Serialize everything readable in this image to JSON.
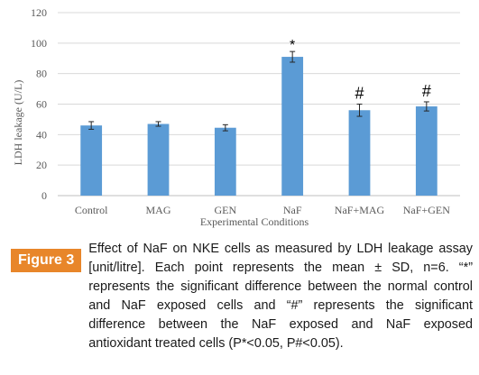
{
  "chart_data": {
    "type": "bar",
    "categories": [
      "Control",
      "MAG",
      "GEN",
      "NaF",
      "NaF+MAG",
      "NaF+GEN"
    ],
    "values": [
      46,
      47,
      44.5,
      91,
      56,
      58.5
    ],
    "errors": [
      2.5,
      1.5,
      2,
      3.5,
      4,
      3
    ],
    "annotations": [
      "",
      "",
      "",
      "*",
      "#",
      "#"
    ],
    "xlabel": "Experimental Conditions",
    "ylabel": "LDH leakage (U/L)",
    "ylim": [
      0,
      120
    ],
    "yticks": [
      0,
      20,
      40,
      60,
      80,
      100,
      120
    ],
    "grid": true,
    "bar_color": "#5b9bd5"
  },
  "caption": {
    "label": "Figure 3",
    "text": "Effect of NaF on NKE cells as measured by LDH leakage assay [unit/litre]. Each point represents the mean ± SD, n=6. “*” represents the significant difference between the normal control and NaF exposed cells and “#” represents the significant difference between the NaF exposed and NaF exposed antioxidant treated cells (P*<0.05, P#<0.05)."
  }
}
